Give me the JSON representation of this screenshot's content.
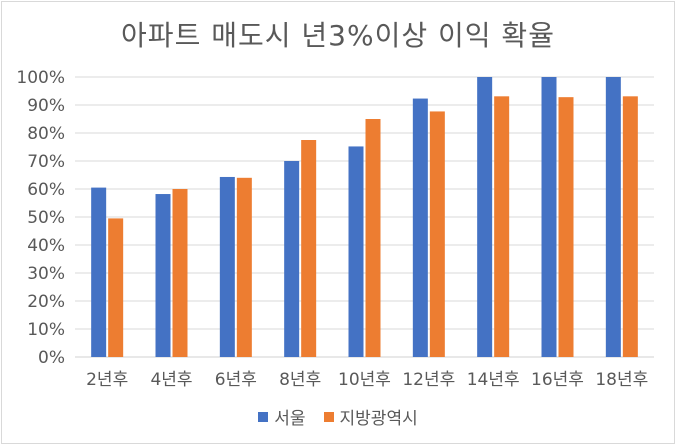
{
  "chart_data": {
    "type": "bar",
    "title": "아파트 매도시 년3%이상 이익 확율",
    "xlabel": "",
    "ylabel": "",
    "categories": [
      "2년후",
      "4년후",
      "6년후",
      "8년후",
      "10년후",
      "12년후",
      "14년후",
      "16년후",
      "18년후"
    ],
    "series": [
      {
        "name": "서울",
        "color": "#4472C4",
        "values": [
          60.5,
          58.2,
          64.3,
          70.0,
          75.2,
          92.3,
          100,
          100,
          100
        ]
      },
      {
        "name": "지방광역시",
        "color": "#ED7D31",
        "values": [
          49.5,
          60.0,
          64.0,
          77.5,
          85.0,
          87.7,
          93.1,
          92.8,
          93.1
        ]
      }
    ],
    "ylim": [
      0,
      100
    ],
    "yticks": [
      "0%",
      "10%",
      "20%",
      "30%",
      "40%",
      "50%",
      "60%",
      "70%",
      "80%",
      "90%",
      "100%"
    ],
    "grid": true,
    "legend_position": "bottom"
  }
}
